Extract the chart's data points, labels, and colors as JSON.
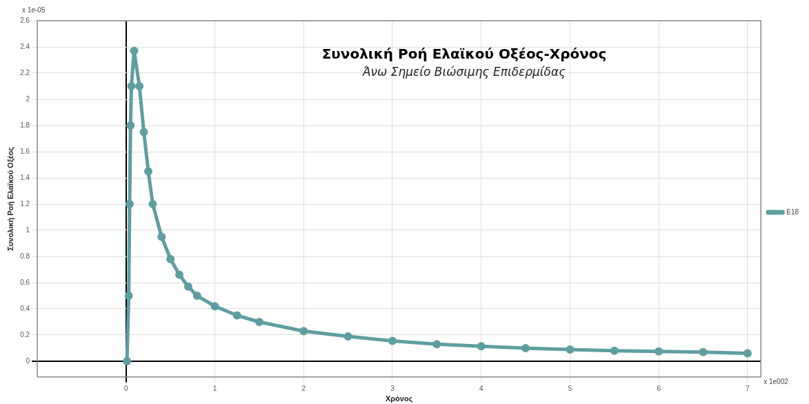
{
  "chart_data": {
    "type": "line",
    "title": "Συνολική Ροή Ελαϊκού Οξέος-Χρόνος",
    "subtitle": "Άνω Σημείο Βιώσιμης Επιδερμίδας",
    "xlabel": "Χρόνος",
    "ylabel": "Συνολική Ροή Ελαϊκού Οξέος",
    "annotations": [
      "x 1e-05",
      "x 1e002"
    ],
    "x": [
      0.01,
      0.03,
      0.04,
      0.05,
      0.06,
      0.09,
      0.15,
      0.2,
      0.25,
      0.3,
      0.4,
      0.5,
      0.6,
      0.7,
      0.8,
      1.0,
      1.25,
      1.5,
      2.0,
      2.5,
      3.0,
      3.5,
      4.0,
      4.5,
      5.0,
      5.5,
      6.0,
      6.5,
      7.0
    ],
    "series": [
      {
        "name": "E18",
        "color": "#5f9ea0",
        "values": [
          0,
          0.5,
          1.2,
          1.8,
          2.1,
          2.37,
          2.1,
          1.75,
          1.45,
          1.2,
          0.95,
          0.78,
          0.66,
          0.57,
          0.5,
          0.42,
          0.35,
          0.3,
          0.23,
          0.19,
          0.155,
          0.13,
          0.115,
          0.1,
          0.09,
          0.08,
          0.075,
          0.07,
          0.06
        ]
      }
    ],
    "xlim": [
      -1,
      7.15
    ],
    "ylim": [
      -0.12,
      2.6
    ],
    "xticks": [
      0,
      1,
      2,
      3,
      4,
      5,
      6,
      7
    ],
    "yticks": [
      0,
      0.2,
      0.4,
      0.6,
      0.8,
      1,
      1.2,
      1.4,
      1.6,
      1.8,
      2,
      2.2,
      2.4,
      2.6
    ],
    "grid": true,
    "legend": "right",
    "marker": "circle",
    "line_style": "solid"
  }
}
